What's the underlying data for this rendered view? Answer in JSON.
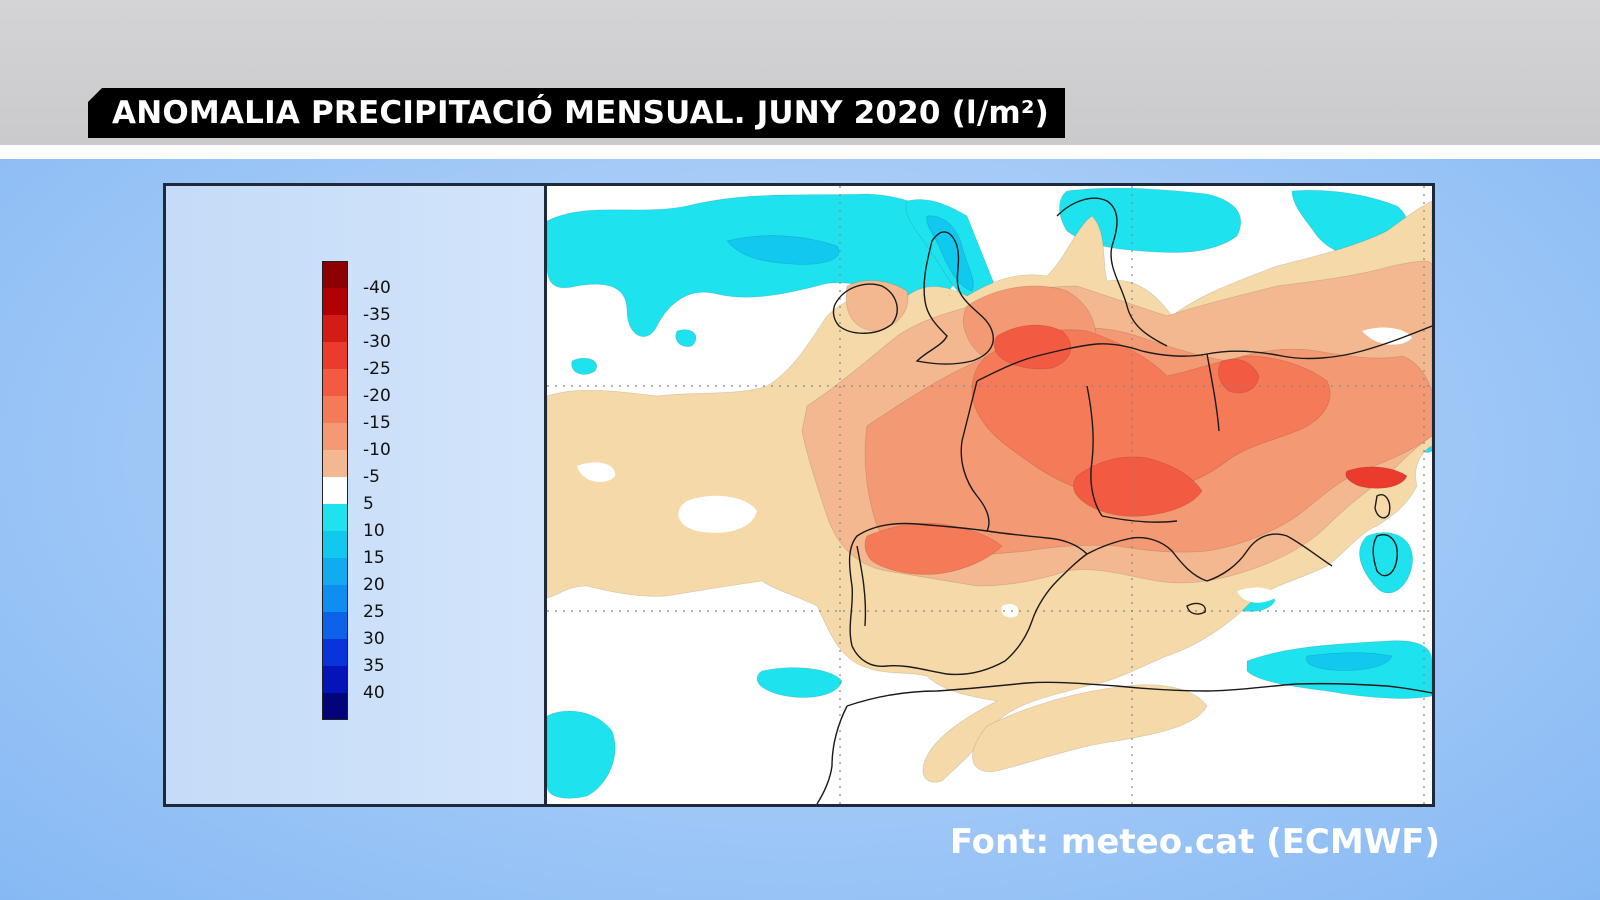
{
  "title": "ANOMALIA PRECIPITACIÓ MENSUAL. JUNY 2020 (l/m²)",
  "source": "Font: meteo.cat (ECMWF)",
  "legend": {
    "levels": [
      {
        "label": "-40",
        "color": "#b00000"
      },
      {
        "label": "-35",
        "color": "#d41c16"
      },
      {
        "label": "-30",
        "color": "#ea3b2c"
      },
      {
        "label": "-25",
        "color": "#f25a42"
      },
      {
        "label": "-20",
        "color": "#f47a58"
      },
      {
        "label": "-15",
        "color": "#f39a74"
      },
      {
        "label": "-10",
        "color": "#f3b88f"
      },
      {
        "label": "-5",
        "color": "#f5d9a8"
      },
      {
        "label": "5",
        "color": "#ffffff"
      },
      {
        "label": "10",
        "color": "#1ee3ef"
      },
      {
        "label": "15",
        "color": "#11c8ef"
      },
      {
        "label": "20",
        "color": "#10acef"
      },
      {
        "label": "25",
        "color": "#0f8df0"
      },
      {
        "label": "30",
        "color": "#0c63ea"
      },
      {
        "label": "35",
        "color": "#0834da"
      },
      {
        "label": "40",
        "color": "#0514b8"
      }
    ],
    "top_color": "#8e0000",
    "bottom_color": "#03037a"
  },
  "colors": {
    "dry_light": "#f5d9a8",
    "dry_mid": "#f3b88f",
    "dry_strong": "#f39a74",
    "dry_stronger": "#f47a58",
    "dry_severe": "#f25a42",
    "dry_extreme": "#ea3b2c",
    "wet_light": "#1ee3ef",
    "wet_mid": "#11c8ef",
    "background": "#ffffff",
    "coastline": "#1a1a1a"
  }
}
